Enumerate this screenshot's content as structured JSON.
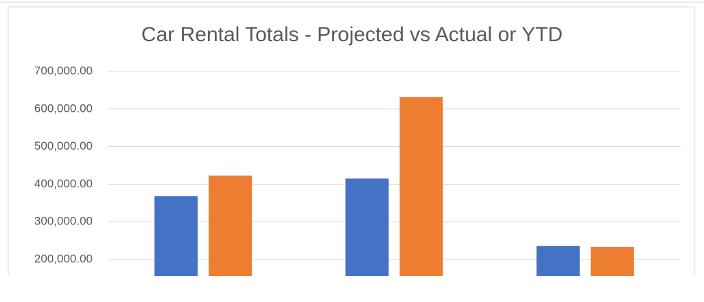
{
  "chart_data": {
    "type": "bar",
    "title": "Car Rental Totals - Projected vs Actual or YTD",
    "categories": [
      null,
      null,
      null
    ],
    "series": [
      {
        "color": "#4472c4",
        "values": [
          368000,
          415000,
          236000
        ]
      },
      {
        "color": "#ed7d31",
        "values": [
          423000,
          632000,
          233000
        ]
      }
    ],
    "ylim": [
      156000,
      700000
    ],
    "yticks": [
      {
        "value": 200000,
        "label": "200,000.00"
      },
      {
        "value": 300000,
        "label": "300,000.00"
      },
      {
        "value": 400000,
        "label": "400,000.00"
      },
      {
        "value": 500000,
        "label": "500,000.00"
      },
      {
        "value": 600000,
        "label": "600,000.00"
      },
      {
        "value": 700000,
        "label": "700,000.00"
      }
    ],
    "grid": true
  }
}
